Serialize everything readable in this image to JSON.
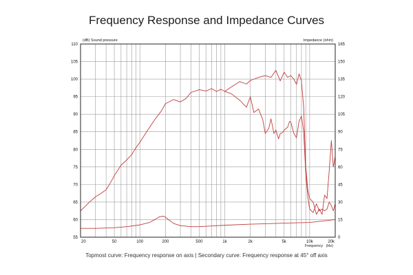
{
  "title": "Frequency Response and Impedance Curves",
  "caption": "Topmost curve: Frequency response on axis | Secondary curve: Frequency response at 45° off axis",
  "chart_data": {
    "type": "line",
    "title": "Frequency Response and Impedance Curves",
    "xlabel": "Frequency   (Hz)",
    "ylabel": "(dB)  Sound pressure",
    "y2label": "Impedance  (ohm)",
    "xscale": "log",
    "xlim": [
      20,
      20000
    ],
    "ylim": [
      55,
      110
    ],
    "y2lim": [
      0,
      165
    ],
    "grid": true,
    "colors": {
      "curve": "#c23b3b",
      "grid": "#9a9a9a",
      "axis": "#222222"
    },
    "x_tick_labels": [
      {
        "v": 20,
        "t": "20"
      },
      {
        "v": 50,
        "t": "50"
      },
      {
        "v": 100,
        "t": "100"
      },
      {
        "v": 200,
        "t": "200"
      },
      {
        "v": 500,
        "t": "500"
      },
      {
        "v": 1000,
        "t": "1k"
      },
      {
        "v": 2000,
        "t": "2k"
      },
      {
        "v": 5000,
        "t": "5k"
      },
      {
        "v": 10000,
        "t": "10k"
      },
      {
        "v": 20000,
        "t": "20k"
      }
    ],
    "y_ticks": [
      55,
      60,
      65,
      70,
      75,
      80,
      85,
      90,
      95,
      100,
      105,
      110
    ],
    "y2_ticks": [
      0,
      15,
      30,
      45,
      60,
      75,
      90,
      105,
      120,
      135,
      150,
      165
    ],
    "series": [
      {
        "axis": "left",
        "x": [
          20,
          25,
          30,
          35,
          40,
          45,
          50,
          60,
          70,
          80,
          90,
          100,
          120,
          150,
          180,
          200,
          250,
          300,
          350,
          400,
          500,
          600,
          700,
          800,
          900,
          1000,
          1200,
          1500,
          1800,
          2000,
          2500,
          3000,
          3500,
          4000,
          4500,
          5000,
          5500,
          6000,
          6500,
          7000,
          7500,
          8000,
          8500,
          9000,
          9500,
          10000,
          11000,
          12000,
          13000,
          14000,
          15000,
          16000,
          17000,
          18000,
          19000,
          20000
        ],
        "y": [
          62.5,
          64.8,
          66.5,
          67.5,
          68.5,
          70.5,
          72.5,
          75.5,
          77,
          78.5,
          80.5,
          82,
          85,
          88.5,
          91,
          93,
          94.2,
          93.5,
          94.5,
          96.2,
          97,
          96.6,
          97.3,
          96.5,
          97.1,
          96.5,
          97.8,
          99.3,
          98.6,
          99.6,
          100.5,
          101,
          100.5,
          102.5,
          99.5,
          102,
          100.5,
          101,
          100,
          98.5,
          101.5,
          99.5,
          92,
          75,
          68.5,
          66,
          65,
          61.5,
          63,
          61.5,
          67,
          66,
          74,
          82.5,
          75,
          78
        ]
      },
      {
        "axis": "left",
        "x": [
          1000,
          1200,
          1500,
          1800,
          2000,
          2200,
          2500,
          2800,
          3000,
          3300,
          3500,
          3800,
          4000,
          4300,
          4500,
          4800,
          5000,
          5300,
          5500,
          5800,
          6000,
          6500,
          7000,
          7500,
          8000,
          8500,
          9000,
          9500,
          10000,
          11000,
          12000,
          13000,
          14000,
          15000,
          16000,
          17000,
          18000,
          19000,
          20000
        ],
        "y": [
          96.5,
          95.8,
          94,
          92,
          95,
          90.5,
          91.5,
          88.5,
          84.5,
          86,
          88.7,
          84.5,
          85.5,
          83,
          84.5,
          84.8,
          85.5,
          86,
          86.3,
          88,
          87.7,
          84.6,
          83.3,
          88,
          89.5,
          85,
          73,
          66.5,
          63,
          62,
          64.5,
          62.5,
          63,
          62.5,
          63,
          65,
          64,
          62.5,
          64.5
        ]
      },
      {
        "axis": "left",
        "x": [
          20,
          30,
          50,
          70,
          100,
          130,
          150,
          170,
          190,
          200,
          220,
          250,
          300,
          400,
          500,
          700,
          1000,
          2000,
          5000,
          10000,
          20000
        ],
        "y": [
          57.5,
          57.5,
          57.7,
          58,
          58.5,
          59.2,
          60.0,
          60.8,
          61.0,
          60.7,
          59.9,
          58.9,
          58.3,
          58.0,
          58.0,
          58.2,
          58.4,
          58.7,
          59.0,
          59.2,
          60.0
        ]
      }
    ]
  }
}
